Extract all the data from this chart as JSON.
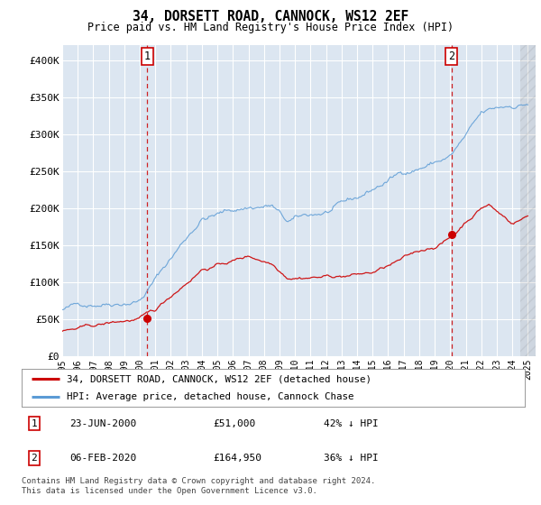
{
  "title": "34, DORSETT ROAD, CANNOCK, WS12 2EF",
  "subtitle": "Price paid vs. HM Land Registry's House Price Index (HPI)",
  "background_color": "#dce6f1",
  "plot_bg_color": "#dce6f1",
  "grid_color": "#ffffff",
  "ylim": [
    0,
    420000
  ],
  "yticks": [
    0,
    50000,
    100000,
    150000,
    200000,
    250000,
    300000,
    350000,
    400000
  ],
  "ytick_labels": [
    "£0",
    "£50K",
    "£100K",
    "£150K",
    "£200K",
    "£250K",
    "£300K",
    "£350K",
    "£400K"
  ],
  "x_start_year": 1995,
  "x_end_year": 2025,
  "marker1_year": 2000.47,
  "marker1_value": 51000,
  "marker1_label": "1",
  "marker1_date": "23-JUN-2000",
  "marker1_price": "£51,000",
  "marker1_hpi": "42% ↓ HPI",
  "marker2_year": 2020.09,
  "marker2_value": 164950,
  "marker2_label": "2",
  "marker2_date": "06-FEB-2020",
  "marker2_price": "£164,950",
  "marker2_hpi": "36% ↓ HPI",
  "red_line_color": "#cc0000",
  "blue_line_color": "#5b9bd5",
  "vline_color": "#cc0000",
  "legend_label_red": "34, DORSETT ROAD, CANNOCK, WS12 2EF (detached house)",
  "legend_label_blue": "HPI: Average price, detached house, Cannock Chase",
  "footer": "Contains HM Land Registry data © Crown copyright and database right 2024.\nThis data is licensed under the Open Government Licence v3.0."
}
